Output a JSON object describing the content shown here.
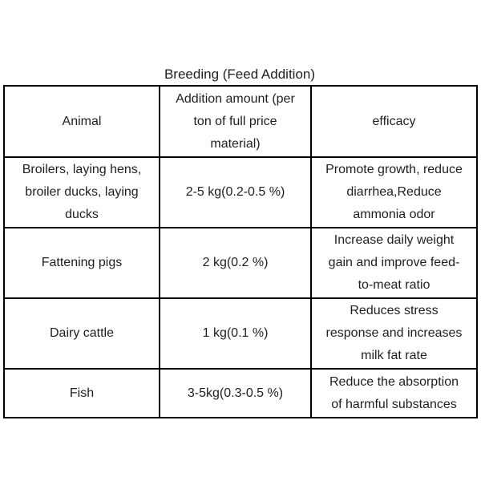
{
  "page": {
    "background": "#ffffff",
    "text_color": "#1f1f1f",
    "border_color": "#000000"
  },
  "title": "Breeding (Feed Addition)",
  "table": {
    "headers": [
      "Animal",
      "Addition amount (per\nton of full price\nmaterial)",
      "efficacy"
    ],
    "rows": [
      {
        "animal": "Broilers, laying hens,\nbroiler ducks, laying\nducks",
        "amount": "2-5 kg(0.2-0.5 %)",
        "efficacy": "Promote growth, reduce\ndiarrhea,Reduce\nammonia odor"
      },
      {
        "animal": "Fattening pigs",
        "amount": "2 kg(0.2 %)",
        "efficacy": "Increase daily weight\ngain and improve feed-\nto-meat ratio"
      },
      {
        "animal": "Dairy cattle",
        "amount": "1 kg(0.1 %)",
        "efficacy": "Reduces stress\nresponse and increases\nmilk fat rate"
      },
      {
        "animal": "Fish",
        "amount": "3-5kg(0.3-0.5 %)",
        "efficacy": "Reduce the absorption\nof harmful substances"
      }
    ]
  }
}
